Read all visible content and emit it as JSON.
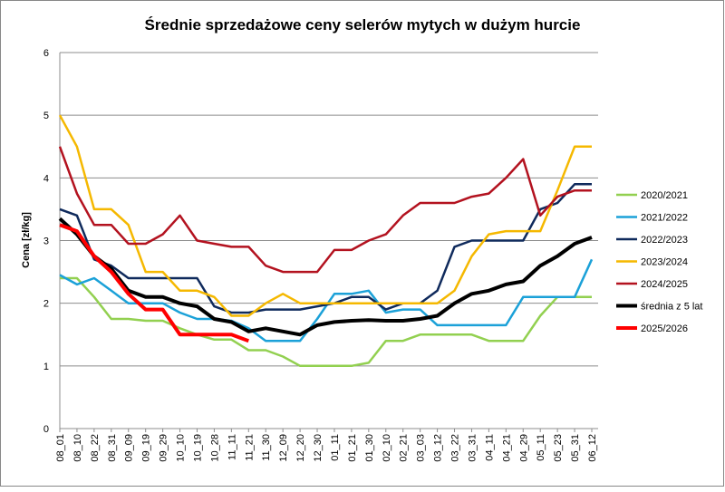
{
  "chart_data": {
    "type": "line",
    "title": "Średnie sprzedażowe ceny selerów mytych w dużym hurcie",
    "y_label": "Cena [zł/kg]",
    "categories": [
      "08_01",
      "08_10",
      "08_22",
      "08_31",
      "09_09",
      "09_19",
      "09_29",
      "10_10",
      "10_19",
      "10_28",
      "11_11",
      "11_21",
      "11_30",
      "12_09",
      "12_20",
      "12_30",
      "01_11",
      "01_21",
      "01_30",
      "02_10",
      "02_21",
      "03_03",
      "03_12",
      "03_22",
      "03_31",
      "04_11",
      "04_21",
      "04_29",
      "05_11",
      "05_23",
      "05_31",
      "06_12"
    ],
    "ylim": [
      0,
      6
    ],
    "yticks": [
      0,
      1,
      2,
      3,
      4,
      5,
      6
    ],
    "grid": true,
    "legend": "right",
    "series": [
      {
        "name": "2020/2021",
        "color": "#92d050",
        "line_width": 2.5,
        "values": [
          2.4,
          2.4,
          2.1,
          1.75,
          1.75,
          1.72,
          1.72,
          1.6,
          1.5,
          1.42,
          1.42,
          1.25,
          1.25,
          1.15,
          1.0,
          1.0,
          1.0,
          1.0,
          1.05,
          1.4,
          1.4,
          1.5,
          1.5,
          1.5,
          1.5,
          1.4,
          1.4,
          1.4,
          1.8,
          2.1,
          2.1,
          2.1
        ]
      },
      {
        "name": "2021/2022",
        "color": "#1ba1d8",
        "line_width": 2.5,
        "values": [
          2.45,
          2.3,
          2.4,
          2.2,
          2.0,
          2.0,
          2.0,
          1.85,
          1.75,
          1.75,
          1.72,
          1.6,
          1.4,
          1.4,
          1.4,
          1.75,
          2.15,
          2.15,
          2.2,
          1.85,
          1.9,
          1.9,
          1.65,
          1.65,
          1.65,
          1.65,
          1.65,
          2.1,
          2.1,
          2.1,
          2.1,
          2.7
        ]
      },
      {
        "name": "2022/2023",
        "color": "#0f2a5c",
        "line_width": 2.5,
        "values": [
          3.5,
          3.4,
          2.7,
          2.6,
          2.4,
          2.4,
          2.4,
          2.4,
          2.4,
          1.95,
          1.85,
          1.85,
          1.9,
          1.9,
          1.9,
          1.95,
          2.0,
          2.1,
          2.1,
          1.9,
          2.0,
          2.0,
          2.2,
          2.9,
          3.0,
          3.0,
          3.0,
          3.0,
          3.5,
          3.6,
          3.9,
          3.9
        ]
      },
      {
        "name": "2023/2024",
        "color": "#f5b800",
        "line_width": 2.5,
        "values": [
          5.0,
          4.5,
          3.5,
          3.5,
          3.25,
          2.5,
          2.5,
          2.2,
          2.2,
          2.1,
          1.8,
          1.8,
          2.0,
          2.15,
          2.0,
          2.0,
          2.0,
          2.0,
          2.0,
          2.0,
          2.0,
          2.0,
          2.0,
          2.2,
          2.75,
          3.1,
          3.15,
          3.15,
          3.15,
          3.8,
          4.5,
          4.5
        ]
      },
      {
        "name": "2024/2025",
        "color": "#b3121f",
        "line_width": 2.5,
        "values": [
          4.5,
          3.75,
          3.25,
          3.25,
          2.95,
          2.95,
          3.1,
          3.4,
          3.0,
          2.95,
          2.9,
          2.9,
          2.6,
          2.5,
          2.5,
          2.5,
          2.85,
          2.85,
          3.0,
          3.1,
          3.4,
          3.6,
          3.6,
          3.6,
          3.7,
          3.75,
          4.0,
          4.3,
          3.4,
          3.7,
          3.8,
          3.8
        ]
      },
      {
        "name": "średnia z 5 lat",
        "color": "#000000",
        "line_width": 4,
        "values": [
          3.35,
          3.1,
          2.75,
          2.55,
          2.2,
          2.1,
          2.1,
          2.0,
          1.95,
          1.75,
          1.7,
          1.55,
          1.6,
          1.55,
          1.5,
          1.65,
          1.7,
          1.72,
          1.73,
          1.72,
          1.72,
          1.75,
          1.8,
          2.0,
          2.15,
          2.2,
          2.3,
          2.35,
          2.6,
          2.75,
          2.95,
          3.05
        ]
      },
      {
        "name": "2025/2026",
        "color": "#ff0000",
        "line_width": 4,
        "values": [
          3.25,
          3.15,
          2.75,
          2.5,
          2.15,
          1.9,
          1.9,
          1.5,
          1.5,
          1.5,
          1.5,
          1.4,
          null,
          null,
          null,
          null,
          null,
          null,
          null,
          null,
          null,
          null,
          null,
          null,
          null,
          null,
          null,
          null,
          null,
          null,
          null,
          null
        ]
      }
    ]
  }
}
